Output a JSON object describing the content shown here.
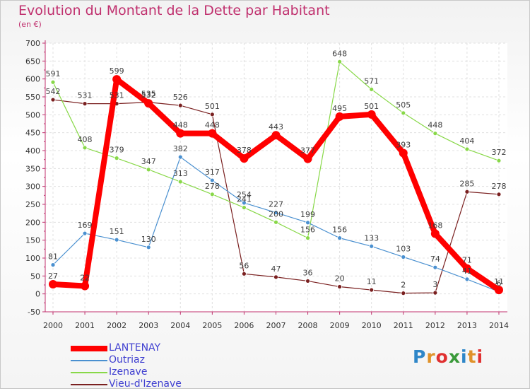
{
  "header": {
    "title": "Evolution du Montant de la Dette par Habitant",
    "subtitle": "(en €)"
  },
  "logo": {
    "text": "Proxiti",
    "colors": [
      "#2e86c8",
      "#e0922a",
      "#e03030",
      "#3a9a3a"
    ]
  },
  "chart_data": {
    "type": "line",
    "title": "Evolution du Montant de la Dette par Habitant",
    "subtitle": "(en €)",
    "x": [
      "2000",
      "2001",
      "2002",
      "2003",
      "2004",
      "2005",
      "2006",
      "2007",
      "2008",
      "2009",
      "2010",
      "2011",
      "2012",
      "2013",
      "2014"
    ],
    "yticks": [
      "-50",
      "0",
      "50",
      "100",
      "150",
      "200",
      "250",
      "300",
      "350",
      "400",
      "450",
      "500",
      "550",
      "600",
      "650",
      "700"
    ],
    "ylim": [
      -50,
      700
    ],
    "grid": true,
    "legend": "bottom-left",
    "series": [
      {
        "name": "LANTENAY",
        "color": "#ff0000",
        "values": [
          27,
          22,
          599,
          532,
          448,
          448,
          378,
          443,
          377,
          495,
          501,
          393,
          168,
          71,
          11
        ],
        "labels": [
          "27",
          "22",
          "599",
          "532",
          "448",
          "448",
          "378",
          "443",
          "377",
          "495",
          "501",
          "393",
          "168",
          "71",
          "11"
        ]
      },
      {
        "name": "Outriaz",
        "color": "#4a90d0",
        "values": [
          81,
          169,
          151,
          130,
          382,
          317,
          254,
          227,
          199,
          156,
          133,
          103,
          74,
          41,
          6
        ],
        "labels": [
          "81",
          "169",
          "151",
          "130",
          "382",
          "317",
          "254",
          "227",
          "199",
          "156",
          "133",
          "103",
          "74",
          "41",
          "6"
        ]
      },
      {
        "name": "Izenave",
        "color": "#88d848",
        "values": [
          591,
          408,
          379,
          347,
          313,
          278,
          241,
          200,
          156,
          648,
          571,
          505,
          448,
          404,
          372
        ],
        "labels": [
          "591",
          "408",
          "379",
          "347",
          "313",
          "278",
          "241",
          "200",
          "156",
          "648",
          "571",
          "505",
          "448",
          "404",
          "372"
        ]
      },
      {
        "name": "Vieu-d'Izenave",
        "color": "#7a2020",
        "values": [
          542,
          531,
          531,
          535,
          526,
          501,
          56,
          47,
          36,
          20,
          11,
          2,
          3,
          285,
          278
        ],
        "labels": [
          "542",
          "531",
          "531",
          "535",
          "526",
          "501",
          "56",
          "47",
          "36",
          "20",
          "11",
          "2",
          "3",
          "285",
          "278"
        ]
      }
    ]
  }
}
